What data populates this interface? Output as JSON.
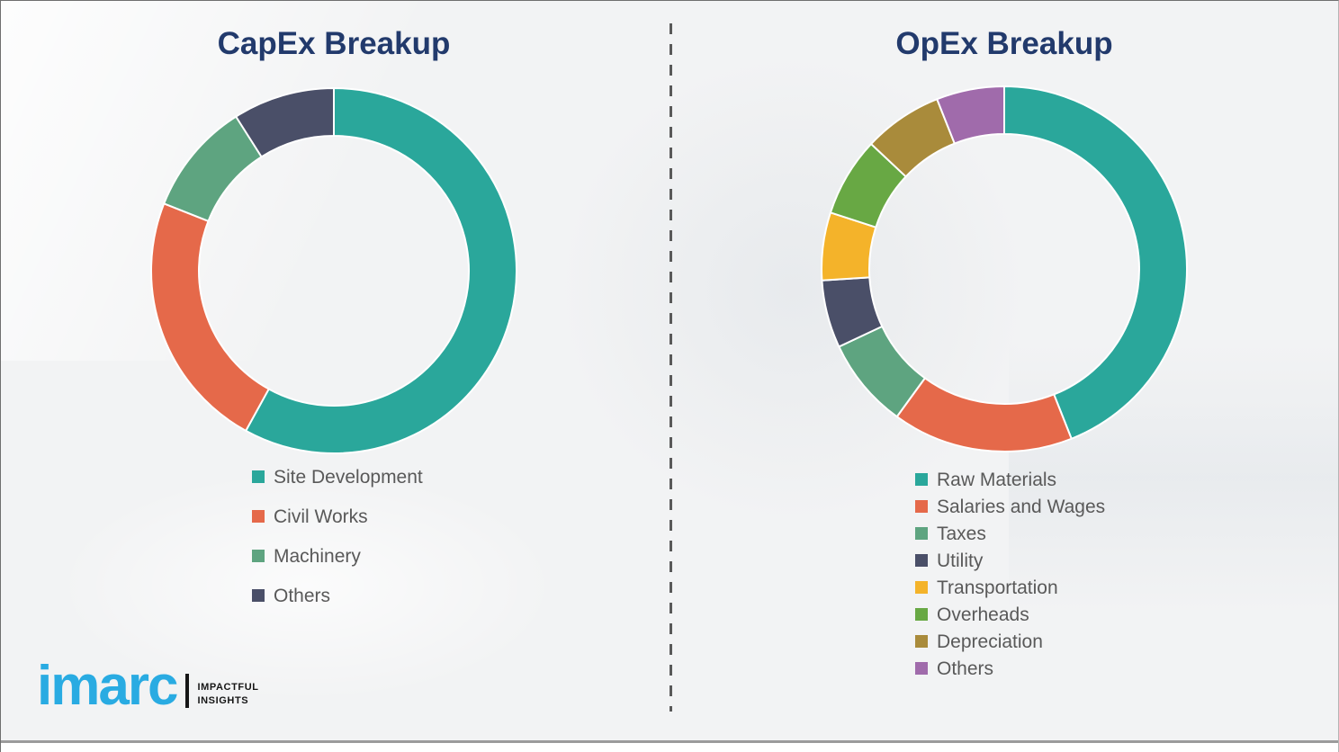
{
  "page": {
    "background_color": "#f2f3f4",
    "divider_color": "#595959",
    "title_color": "#223a6c",
    "legend_text_color": "#595959"
  },
  "chart_data": [
    {
      "type": "pie",
      "subtype": "donut",
      "title": "CapEx Breakup",
      "categories": [
        "Site Development",
        "Civil Works",
        "Machinery",
        "Others"
      ],
      "values": [
        58,
        23,
        10,
        9
      ],
      "value_unit": "percent (estimated from arc angles, no labels shown)",
      "colors": [
        "#2aa79b",
        "#e5694a",
        "#5ea480",
        "#4a4f68"
      ],
      "start_angle_deg": 0,
      "direction": "clockwise",
      "donut_hole_ratio": 0.74,
      "legend_position": "below",
      "data_labels": false
    },
    {
      "type": "pie",
      "subtype": "donut",
      "title": "OpEx Breakup",
      "categories": [
        "Raw Materials",
        "Salaries and Wages",
        "Taxes",
        "Utility",
        "Transportation",
        "Overheads",
        "Depreciation",
        "Others"
      ],
      "values": [
        44,
        16,
        8,
        6,
        6,
        7,
        7,
        6
      ],
      "value_unit": "percent (estimated from arc angles, no labels shown)",
      "colors": [
        "#2aa79b",
        "#e5694a",
        "#5ea480",
        "#4a4f68",
        "#f4b32a",
        "#68a844",
        "#a98b3b",
        "#a06bab"
      ],
      "start_angle_deg": 0,
      "direction": "clockwise",
      "donut_hole_ratio": 0.74,
      "legend_position": "below",
      "data_labels": false
    }
  ],
  "logo": {
    "brand": "imarc",
    "brand_color": "#29abe2",
    "tagline_line1": "IMPACTFUL",
    "tagline_line2": "INSIGHTS"
  }
}
